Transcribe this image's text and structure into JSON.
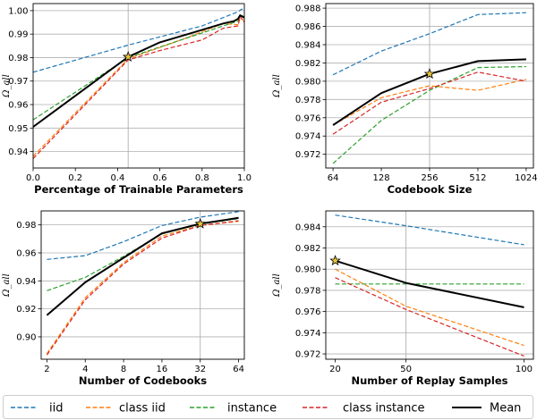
{
  "figure": {
    "colors": {
      "iid": "#1f77b4",
      "class iid": "#ff7f0e",
      "instance": "#2ca02c",
      "class instance": "#d62728",
      "Mean": "#000000",
      "star_fill": "#e8c33b",
      "grid": "#b0b0b0"
    },
    "legend": [
      {
        "name": "iid",
        "style": "dashed"
      },
      {
        "name": "class iid",
        "style": "dashed"
      },
      {
        "name": "instance",
        "style": "dashed"
      },
      {
        "name": "class instance",
        "style": "dashed"
      },
      {
        "name": "Mean",
        "style": "solid"
      }
    ]
  },
  "chart_data": [
    {
      "type": "line",
      "id": "trainable",
      "xlabel": "Percentage of Trainable Parameters",
      "ylabel": "Ω_all",
      "xlim": [
        0,
        1
      ],
      "ylim": [
        0.933,
        1.003
      ],
      "xticks": [
        0,
        0.2,
        0.4,
        0.6,
        0.8,
        1.0
      ],
      "xticklabels": [
        "0.0",
        "0.2",
        "0.4",
        "0.6",
        "0.8",
        "1.0"
      ],
      "yticks": [
        0.94,
        0.95,
        0.96,
        0.97,
        0.98,
        0.99,
        1.0
      ],
      "yticklabels": [
        "0.94",
        "0.95",
        "0.96",
        "0.97",
        "0.98",
        "0.99",
        "1.00"
      ],
      "vline": 0.45,
      "star": [
        0.45,
        0.9803
      ],
      "series": [
        {
          "name": "iid",
          "x": [
            0.0,
            0.45,
            0.8,
            0.97,
            0.985,
            1.0
          ],
          "y": [
            0.9738,
            0.9853,
            0.9935,
            0.9995,
            1.0005,
            1.001
          ]
        },
        {
          "name": "class iid",
          "x": [
            0.0,
            0.45,
            0.7,
            0.8,
            0.9,
            0.97,
            0.98,
            1.0
          ],
          "y": [
            0.938,
            0.9795,
            0.9875,
            0.991,
            0.9945,
            0.994,
            0.997,
            0.9955
          ]
        },
        {
          "name": "instance",
          "x": [
            0.0,
            0.45,
            0.7,
            0.9,
            0.97,
            0.98,
            1.0
          ],
          "y": [
            0.9535,
            0.98,
            0.9875,
            0.9935,
            0.9955,
            0.998,
            0.9975
          ]
        },
        {
          "name": "class instance",
          "x": [
            0.0,
            0.45,
            0.6,
            0.8,
            0.9,
            0.97,
            0.98,
            1.0
          ],
          "y": [
            0.937,
            0.979,
            0.983,
            0.9875,
            0.9925,
            0.9935,
            0.9975,
            0.995
          ]
        },
        {
          "name": "Mean",
          "x": [
            0.0,
            0.45,
            0.6,
            0.8,
            0.9,
            0.95,
            0.97,
            0.98,
            1.0
          ],
          "y": [
            0.9505,
            0.9803,
            0.9865,
            0.9918,
            0.9945,
            0.9955,
            0.9965,
            0.998,
            0.997
          ]
        }
      ]
    },
    {
      "type": "line",
      "id": "codebook_size",
      "xlabel": "Codebook Size",
      "ylabel": "Ω_all",
      "xlim": [
        -0.15,
        4.15
      ],
      "ylim": [
        0.9705,
        0.9885
      ],
      "xticks": [
        0,
        1,
        2,
        3,
        4
      ],
      "xticklabels": [
        "64",
        "128",
        "256",
        "512",
        "1024"
      ],
      "yticks": [
        0.972,
        0.974,
        0.976,
        0.978,
        0.98,
        0.982,
        0.984,
        0.986,
        0.988
      ],
      "yticklabels": [
        "0.972",
        "0.974",
        "0.976",
        "0.978",
        "0.980",
        "0.982",
        "0.984",
        "0.986",
        "0.988"
      ],
      "vline": 2,
      "star": [
        2,
        0.9808
      ],
      "series": [
        {
          "name": "iid",
          "x": [
            0,
            1,
            2,
            3,
            4
          ],
          "y": [
            0.9807,
            0.9833,
            0.9852,
            0.9873,
            0.9875
          ]
        },
        {
          "name": "class iid",
          "x": [
            0,
            1,
            2,
            3,
            4
          ],
          "y": [
            0.9752,
            0.9782,
            0.9795,
            0.979,
            0.9802
          ]
        },
        {
          "name": "instance",
          "x": [
            0,
            1,
            2,
            3,
            4
          ],
          "y": [
            0.971,
            0.9757,
            0.979,
            0.9815,
            0.9816
          ]
        },
        {
          "name": "class instance",
          "x": [
            0,
            1,
            2,
            3,
            4
          ],
          "y": [
            0.9742,
            0.9777,
            0.9792,
            0.981,
            0.98
          ]
        },
        {
          "name": "Mean",
          "x": [
            0,
            1,
            2,
            3,
            4
          ],
          "y": [
            0.9752,
            0.9787,
            0.9808,
            0.9822,
            0.9824
          ]
        }
      ]
    },
    {
      "type": "line",
      "id": "num_codebooks",
      "xlabel": "Number of Codebooks",
      "ylabel": "Ω_all",
      "xlim": [
        -0.15,
        5.15
      ],
      "ylim": [
        0.884,
        0.99
      ],
      "xticks": [
        0,
        1,
        2,
        3,
        4,
        5
      ],
      "xticklabels": [
        "2",
        "4",
        "8",
        "16",
        "32",
        "64"
      ],
      "yticks": [
        0.9,
        0.92,
        0.94,
        0.96,
        0.98
      ],
      "yticklabels": [
        "0.90",
        "0.92",
        "0.94",
        "0.96",
        "0.98"
      ],
      "vline": 4,
      "star": [
        4,
        0.9808
      ],
      "series": [
        {
          "name": "iid",
          "x": [
            0,
            1,
            2,
            3,
            4,
            5
          ],
          "y": [
            0.9553,
            0.958,
            0.968,
            0.9795,
            0.9855,
            0.9895
          ]
        },
        {
          "name": "class iid",
          "x": [
            0,
            1,
            2,
            3,
            4,
            5
          ],
          "y": [
            0.888,
            0.928,
            0.953,
            0.972,
            0.9795,
            0.9825
          ]
        },
        {
          "name": "instance",
          "x": [
            0,
            1,
            2,
            3,
            4,
            5
          ],
          "y": [
            0.933,
            0.9425,
            0.9575,
            0.9735,
            0.9805,
            0.9845
          ]
        },
        {
          "name": "class instance",
          "x": [
            0,
            1,
            2,
            3,
            4,
            5
          ],
          "y": [
            0.887,
            0.9265,
            0.952,
            0.9705,
            0.9795,
            0.983
          ]
        },
        {
          "name": "Mean",
          "x": [
            0,
            1,
            2,
            3,
            4,
            5
          ],
          "y": [
            0.9155,
            0.939,
            0.9565,
            0.974,
            0.9808,
            0.985
          ]
        }
      ]
    },
    {
      "type": "line",
      "id": "replay_samples",
      "xlabel": "Number of Replay Samples",
      "ylabel": "Ω_all",
      "xlim": [
        16,
        104
      ],
      "ylim": [
        0.9715,
        0.9855
      ],
      "xticks": [
        20,
        50,
        100
      ],
      "xticklabels": [
        "20",
        "50",
        "100"
      ],
      "yticks": [
        0.972,
        0.974,
        0.976,
        0.978,
        0.98,
        0.982,
        0.984
      ],
      "yticklabels": [
        "0.972",
        "0.974",
        "0.976",
        "0.978",
        "0.980",
        "0.982",
        "0.984"
      ],
      "vline": 50,
      "star": [
        20,
        0.9808
      ],
      "series": [
        {
          "name": "iid",
          "x": [
            20,
            50,
            100
          ],
          "y": [
            0.9851,
            0.9841,
            0.9823
          ]
        },
        {
          "name": "class iid",
          "x": [
            20,
            50,
            100
          ],
          "y": [
            0.98,
            0.9765,
            0.9728
          ]
        },
        {
          "name": "instance",
          "x": [
            20,
            50,
            100
          ],
          "y": [
            0.9786,
            0.9786,
            0.9786
          ]
        },
        {
          "name": "class instance",
          "x": [
            20,
            50,
            100
          ],
          "y": [
            0.9792,
            0.9762,
            0.9718
          ]
        },
        {
          "name": "Mean",
          "x": [
            20,
            50,
            100
          ],
          "y": [
            0.9808,
            0.9787,
            0.9764
          ]
        }
      ]
    }
  ]
}
